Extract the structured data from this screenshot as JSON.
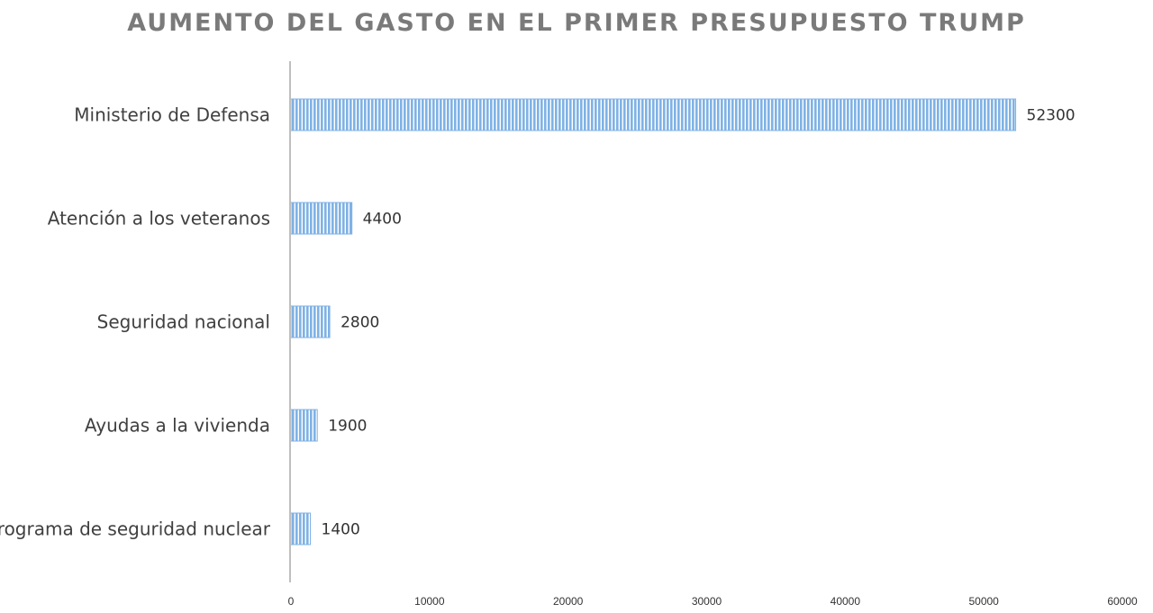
{
  "chart_data": {
    "type": "bar",
    "orientation": "horizontal",
    "title": "AUMENTO DEL GASTO EN EL PRIMER PRESUPUESTO TRUMP",
    "categories": [
      "Ministerio de Defensa",
      "Atención a los veteranos",
      "Seguridad nacional",
      "Ayudas a la vivienda",
      "Programa de seguridad nuclear"
    ],
    "values": [
      52300,
      4400,
      2800,
      1900,
      1400
    ],
    "value_labels": [
      "52300",
      "4400",
      "2800",
      "1900",
      "1400"
    ],
    "xlim": [
      0,
      60000
    ],
    "x_ticks": [
      0,
      10000,
      20000,
      30000,
      40000,
      50000,
      60000
    ],
    "x_tick_labels": [
      "0",
      "10000",
      "20000",
      "30000",
      "40000",
      "50000",
      "60000"
    ],
    "xlabel": "",
    "ylabel": "",
    "grid": false,
    "legend": "none",
    "bar_fill": "#7fb2e5",
    "bar_stripe": "#ffffff",
    "axis_color": "#bfbfbf",
    "title_color": "#7a7a7a"
  }
}
